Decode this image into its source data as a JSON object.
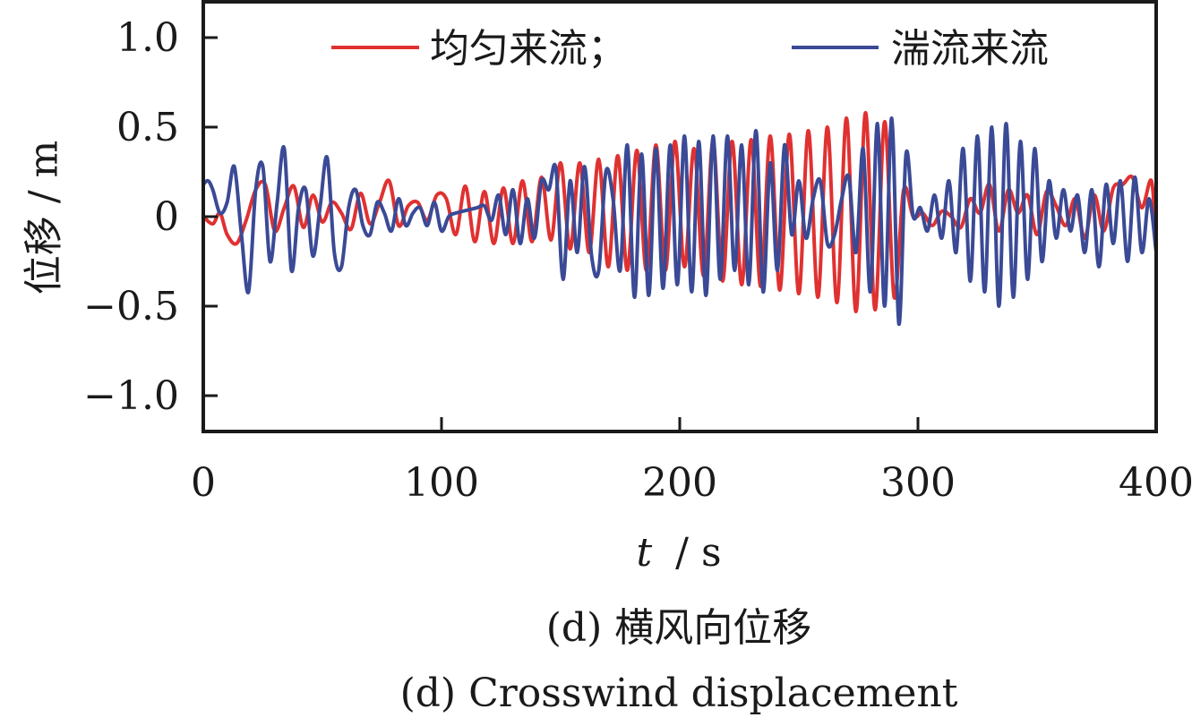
{
  "chart_data": {
    "type": "line",
    "xlabel_var": "t",
    "xlabel_unit": "/ s",
    "ylabel": "位移 / m",
    "xlim": [
      0,
      400
    ],
    "ylim": [
      -1.2,
      1.2
    ],
    "xticks": [
      0,
      100,
      200,
      300,
      400
    ],
    "xtick_labels": [
      "0",
      "100",
      "200",
      "300",
      "400"
    ],
    "yticks": [
      1.0,
      0.5,
      0,
      -0.5,
      -1.0
    ],
    "ytick_labels": [
      "1.0",
      "0.5",
      "0",
      "−0.5",
      "−1.0"
    ],
    "grid": false,
    "legend_position": "top",
    "legend": [
      {
        "label": "均匀来流；",
        "color": "#e03131"
      },
      {
        "label": "湍流来流",
        "color": "#3a4a96"
      }
    ],
    "series": [
      {
        "name": "均匀来流",
        "color": "#e03131",
        "x": [
          0,
          4,
          7,
          10,
          14,
          18,
          22,
          26,
          30,
          34,
          38,
          42,
          46,
          50,
          54,
          58,
          62,
          66,
          70,
          74,
          78,
          82,
          86,
          90,
          94,
          98,
          102,
          106,
          110,
          114,
          118,
          122,
          126,
          130,
          134,
          138,
          142,
          146,
          150,
          154,
          158,
          162,
          166,
          170,
          174,
          178,
          182,
          186,
          190,
          194,
          198,
          202,
          206,
          210,
          214,
          218,
          222,
          226,
          230,
          234,
          238,
          242,
          246,
          250,
          254,
          258,
          262,
          266,
          270,
          274,
          278,
          282,
          286,
          290,
          294,
          298,
          302,
          306,
          310,
          314,
          318,
          322,
          326,
          330,
          334,
          338,
          342,
          346,
          350,
          354,
          358,
          362,
          366,
          370,
          374,
          378,
          382,
          386,
          390,
          394,
          398,
          400
        ],
        "y": [
          0,
          -0.04,
          0.02,
          -0.1,
          -0.15,
          -0.02,
          0.15,
          0.18,
          -0.08,
          0.05,
          0.17,
          -0.06,
          0.12,
          -0.03,
          0.08,
          0.02,
          -0.07,
          0.13,
          -0.04,
          0.08,
          0.2,
          -0.05,
          0.06,
          0.08,
          -0.02,
          0.12,
          0.1,
          -0.1,
          0.17,
          -0.14,
          0.14,
          -0.15,
          0.16,
          -0.15,
          0.2,
          -0.14,
          0.22,
          -0.13,
          0.3,
          -0.18,
          0.3,
          -0.2,
          0.32,
          -0.28,
          0.34,
          -0.3,
          0.37,
          -0.3,
          0.4,
          -0.3,
          0.42,
          -0.28,
          0.38,
          -0.33,
          0.42,
          -0.36,
          0.42,
          -0.38,
          0.43,
          -0.39,
          0.45,
          -0.41,
          0.46,
          -0.43,
          0.48,
          -0.45,
          0.5,
          -0.48,
          0.55,
          -0.53,
          0.58,
          -0.52,
          0.53,
          -0.45,
          0.15,
          0.0,
          0.02,
          -0.05,
          0.03,
          0.0,
          -0.06,
          0.1,
          0.02,
          0.18,
          -0.08,
          0.15,
          0.02,
          0.12,
          -0.1,
          0.14,
          0.06,
          -0.05,
          0.1,
          -0.12,
          0.12,
          -0.08,
          0.16,
          0.18,
          0.22,
          0.05,
          0.2,
          -0.15
        ]
      },
      {
        "name": "湍流来流",
        "color": "#3a4a96",
        "x": [
          0,
          2,
          4,
          7,
          10,
          13,
          16,
          19,
          22,
          25,
          28,
          31,
          34,
          37,
          40,
          43,
          46,
          49,
          52,
          55,
          58,
          61,
          64,
          67,
          70,
          73,
          76,
          79,
          82,
          85,
          88,
          91,
          94,
          97,
          100,
          103,
          106,
          109,
          112,
          115,
          118,
          121,
          124,
          127,
          130,
          133,
          136,
          139,
          142,
          145,
          148,
          151,
          154,
          157,
          160,
          163,
          166,
          169,
          172,
          175,
          178,
          181,
          184,
          187,
          190,
          193,
          196,
          199,
          202,
          205,
          208,
          211,
          214,
          217,
          220,
          223,
          226,
          229,
          232,
          235,
          238,
          241,
          244,
          247,
          250,
          253,
          256,
          259,
          262,
          265,
          268,
          271,
          274,
          277,
          280,
          283,
          286,
          289,
          292,
          295,
          298,
          301,
          304,
          307,
          310,
          313,
          316,
          319,
          322,
          325,
          328,
          331,
          334,
          337,
          340,
          343,
          346,
          349,
          352,
          355,
          358,
          361,
          364,
          367,
          370,
          373,
          376,
          379,
          382,
          385,
          388,
          391,
          394,
          397,
          400
        ],
        "y": [
          0.18,
          0.2,
          0.15,
          0.02,
          0.08,
          0.28,
          -0.1,
          -0.42,
          0.15,
          0.28,
          -0.25,
          0.08,
          0.38,
          -0.3,
          0.05,
          0.15,
          -0.22,
          0.05,
          0.33,
          -0.2,
          -0.28,
          0.05,
          0.15,
          -0.05,
          -0.1,
          0.08,
          0.02,
          -0.08,
          0.1,
          -0.05,
          0.02,
          0.05,
          -0.05,
          0.08,
          -0.08,
          0.0,
          0.02,
          0.03,
          0.04,
          0.05,
          0.06,
          -0.02,
          0.12,
          -0.1,
          0.15,
          -0.15,
          0.1,
          -0.12,
          0.2,
          0.15,
          0.27,
          -0.35,
          0.2,
          -0.2,
          0.28,
          -0.22,
          -0.3,
          0.25,
          0.1,
          -0.3,
          0.4,
          -0.45,
          0.35,
          -0.44,
          0.38,
          -0.4,
          0.4,
          -0.38,
          0.45,
          -0.42,
          0.42,
          -0.44,
          0.45,
          -0.35,
          0.45,
          -0.3,
          0.4,
          -0.38,
          0.48,
          -0.42,
          0.3,
          -0.3,
          0.4,
          -0.1,
          0.2,
          -0.12,
          0.1,
          0.2,
          -0.15,
          -0.1,
          0.1,
          0.22,
          -0.2,
          0.38,
          -0.42,
          0.52,
          -0.5,
          0.55,
          -0.6,
          0.35,
          0.0,
          0.05,
          -0.08,
          0.12,
          -0.12,
          0.2,
          -0.2,
          0.38,
          -0.36,
          0.45,
          -0.42,
          0.5,
          -0.5,
          0.52,
          -0.45,
          0.42,
          -0.35,
          0.38,
          -0.25,
          0.2,
          -0.12,
          0.15,
          -0.08,
          0.12,
          -0.2,
          0.15,
          -0.28,
          0.18,
          -0.15,
          0.2,
          -0.25,
          0.22,
          -0.2,
          0.1,
          -0.2
        ]
      }
    ]
  },
  "caption": {
    "line1": "(d)  横风向位移",
    "line2": "(d)  Crosswind displacement"
  }
}
